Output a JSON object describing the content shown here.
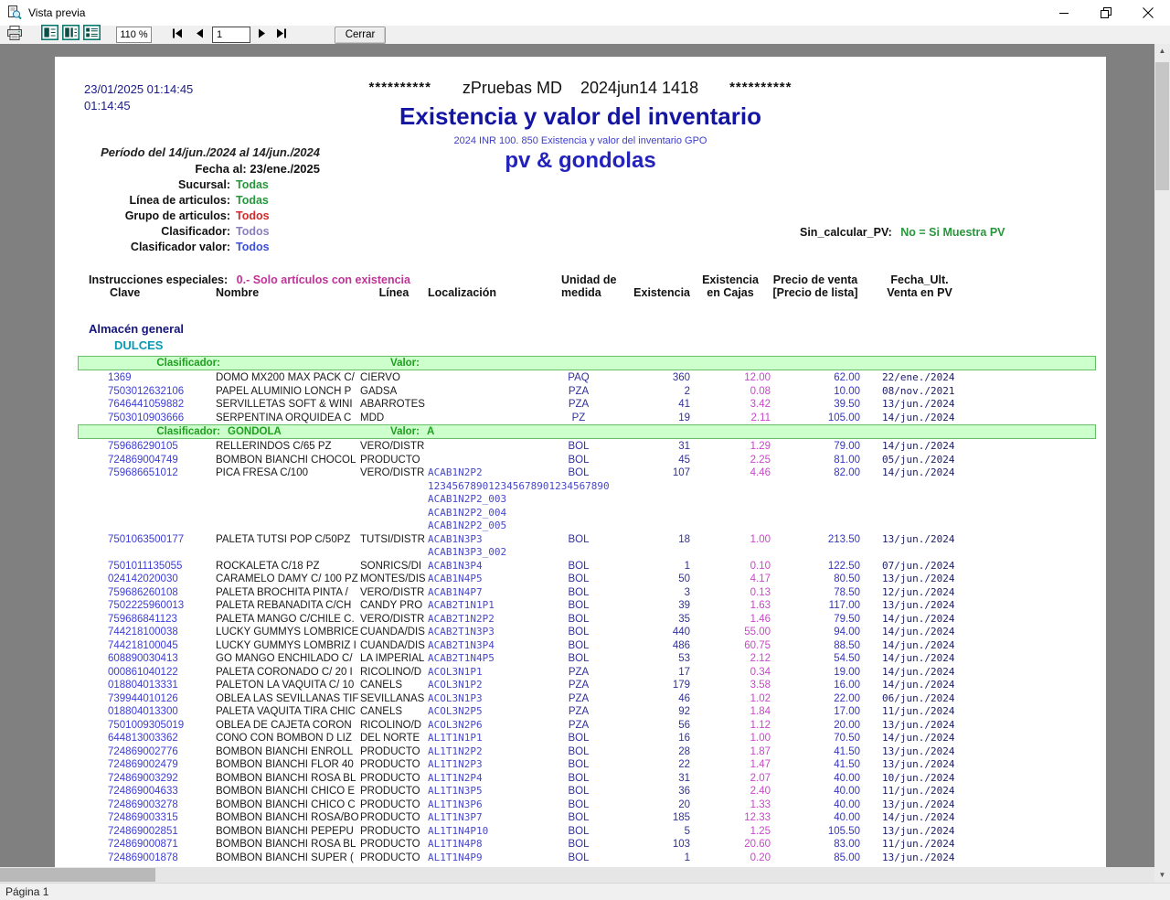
{
  "window": {
    "title": "Vista previa",
    "controls": {
      "minimize": "minimize",
      "restore": "restore",
      "close": "close"
    }
  },
  "toolbar": {
    "zoom_value": "110 %",
    "page_number": "1",
    "close_label": "Cerrar",
    "icons": [
      "printer-icon",
      "single-page-view-icon",
      "page-width-view-icon",
      "multi-page-view-icon",
      "first-page-icon",
      "prev-page-icon",
      "next-page-icon",
      "last-page-icon"
    ]
  },
  "statusbar": {
    "text": "Página 1"
  },
  "colors": {
    "title_navy": "#1515a3",
    "subtitle_blue": "#3c3ccc",
    "pv_blue": "#2323bb",
    "value_green": "#28963c",
    "value_red": "#d42a2a",
    "value_purple": "#8a7ec0",
    "value_blue": "#3a50d8",
    "instructions_magenta": "#c03399",
    "bar_green_bg": "#ccffcc",
    "bar_green_text": "#1fa01f",
    "clave_blue": "#3c3cd8",
    "exist_navy": "#30309c",
    "cajas_magenta": "#cc44cc",
    "precio_blue": "#3434c8",
    "grupo_teal": "#0a9ab4",
    "almacen_navy": "#15157e",
    "workspace_gray": "#808080"
  },
  "report": {
    "printed_datetime": "23/01/2025 01:14:45",
    "printed_time": "01:14:45",
    "stars": "**********",
    "company_line": "zPruebas MD    2024jun14 1418",
    "title": "Existencia y valor del inventario",
    "subtitle": "2024 INR 100. 850 Existencia y valor del inventario GPO",
    "subtitle2": "pv & gondolas",
    "periodo": "Período del 14/jun./2024 al 14/jun./2024",
    "fecha_al": "Fecha al: 23/ene./2025",
    "filters": [
      {
        "label": "Sucursal:",
        "value": "Todas"
      },
      {
        "label": "Línea de articulos:",
        "value": "Todas"
      },
      {
        "label": "Grupo de articulos:",
        "value": "Todos"
      },
      {
        "label": "Clasificador:",
        "value": "Todos"
      },
      {
        "label": "Clasificador valor:",
        "value": "Todos"
      }
    ],
    "sin_calcular_label": "Sin_calcular_PV:",
    "sin_calcular_value": "No = Si Muestra PV",
    "instrucciones_label": "Instrucciones especiales:",
    "instrucciones_value": "0.- Solo artículos con existencia",
    "columns": {
      "clave": "Clave",
      "nombre": "Nombre",
      "linea": "Línea",
      "localizacion": "Localización",
      "um_l1": "Unidad de",
      "um_l2": "medida",
      "existencia": "Existencia",
      "cajas_l1": "Existencia",
      "cajas_l2": "en Cajas",
      "precio_l1": "Precio de venta",
      "precio_l2": "[Precio de lista]",
      "fecha_l1": "Fecha_Ult.",
      "fecha_l2": "Venta en PV"
    },
    "almacen": "Almacén general",
    "grupo": "DULCES",
    "table": {
      "bar_labels": {
        "clasificador": "Clasificador:",
        "valor": "Valor:"
      },
      "sections": [
        {
          "clasificador": "",
          "valor": "",
          "rows": [
            {
              "clave": "1369",
              "nombre": "DOMO MX200 MAX PACK C/",
              "linea": "CIERVO",
              "loc": "",
              "um": "PAQ",
              "exist": "360",
              "cajas": "12.00",
              "precio": "62.00",
              "fecha": "22/ene./2024"
            },
            {
              "clave": "7503012632106",
              "nombre": "PAPEL ALUMINIO LONCH P",
              "linea": "GADSA",
              "loc": "",
              "um": "PZA",
              "exist": "2",
              "cajas": "0.08",
              "precio": "10.00",
              "fecha": "08/nov./2021"
            },
            {
              "clave": "7646441059882",
              "nombre": "SERVILLETAS SOFT & WINI",
              "linea": "ABARROTES",
              "loc": "",
              "um": "PZA",
              "exist": "41",
              "cajas": "3.42",
              "precio": "39.50",
              "fecha": "13/jun./2024"
            },
            {
              "clave": "7503010903666",
              "nombre": "SERPENTINA ORQUIDEA C",
              "linea": "MDD",
              "loc": "",
              "um": "PZ",
              "exist": "19",
              "cajas": "2.11",
              "precio": "105.00",
              "fecha": "14/jun./2024"
            }
          ]
        },
        {
          "clasificador": "GONDOLA",
          "valor": "A",
          "rows": [
            {
              "clave": "759686290105",
              "nombre": "RELLERINDOS C/65 PZ",
              "linea": "VERO/DISTR",
              "loc": "",
              "um": "BOL",
              "exist": "31",
              "cajas": "1.29",
              "precio": "79.00",
              "fecha": "14/jun./2024"
            },
            {
              "clave": "724869004749",
              "nombre": "BOMBON BIANCHI CHOCOL",
              "linea": "PRODUCTO",
              "loc": "",
              "um": "BOL",
              "exist": "45",
              "cajas": "2.25",
              "precio": "81.00",
              "fecha": "05/jun./2024"
            },
            {
              "clave": "759686651012",
              "nombre": "PICA FRESA C/100",
              "linea": "VERO/DISTR",
              "loc": "ACAB1N2P2",
              "loc_extra": [
                "123456789012345678901234567890",
                "ACAB1N2P2_003",
                "ACAB1N2P2_004",
                "ACAB1N2P2_005"
              ],
              "um": "BOL",
              "exist": "107",
              "cajas": "4.46",
              "precio": "82.00",
              "fecha": "14/jun./2024"
            },
            {
              "clave": "7501063500177",
              "nombre": "PALETA TUTSI POP C/50PZ",
              "linea": "TUTSI/DISTR",
              "loc": "ACAB1N3P3",
              "loc_extra": [
                "ACAB1N3P3_002"
              ],
              "um": "BOL",
              "exist": "18",
              "cajas": "1.00",
              "precio": "213.50",
              "fecha": "13/jun./2024"
            },
            {
              "clave": "7501011135055",
              "nombre": "ROCKALETA C/18 PZ",
              "linea": "SONRICS/DI",
              "loc": "ACAB1N3P4",
              "um": "BOL",
              "exist": "1",
              "cajas": "0.10",
              "precio": "122.50",
              "fecha": "07/jun./2024"
            },
            {
              "clave": "024142020030",
              "nombre": "CARAMELO DAMY C/ 100 PZ",
              "linea": "MONTES/DIS",
              "loc": "ACAB1N4P5",
              "um": "BOL",
              "exist": "50",
              "cajas": "4.17",
              "precio": "80.50",
              "fecha": "13/jun./2024"
            },
            {
              "clave": "759686260108",
              "nombre": "PALETA  BROCHITA PINTA /",
              "linea": "VERO/DISTR",
              "loc": "ACAB1N4P7",
              "um": "BOL",
              "exist": "3",
              "cajas": "0.13",
              "precio": "78.50",
              "fecha": "12/jun./2024"
            },
            {
              "clave": "7502225960013",
              "nombre": "PALETA REBANADITA C/CH",
              "linea": "CANDY PRO",
              "loc": "ACAB2T1N1P1",
              "um": "BOL",
              "exist": "39",
              "cajas": "1.63",
              "precio": "117.00",
              "fecha": "13/jun./2024"
            },
            {
              "clave": "759686841123",
              "nombre": "PALETA MANGO C/CHILE C.",
              "linea": "VERO/DISTR",
              "loc": "ACAB2T1N2P2",
              "um": "BOL",
              "exist": "35",
              "cajas": "1.46",
              "precio": "79.50",
              "fecha": "14/jun./2024"
            },
            {
              "clave": "744218100038",
              "nombre": "LUCKY GUMMYS LOMBRICE",
              "linea": "CUANDA/DIS",
              "loc": "ACAB2T1N3P3",
              "um": "BOL",
              "exist": "440",
              "cajas": "55.00",
              "precio": "94.00",
              "fecha": "14/jun./2024"
            },
            {
              "clave": "744218100045",
              "nombre": "LUCKY GUMMYS LOMBRIZ I",
              "linea": "CUANDA/DIS",
              "loc": "ACAB2T1N3P4",
              "um": "BOL",
              "exist": "486",
              "cajas": "60.75",
              "precio": "88.50",
              "fecha": "14/jun./2024"
            },
            {
              "clave": "608890030413",
              "nombre": "GO MANGO ENCHILADO C/",
              "linea": "LA IMPERIAL",
              "loc": "ACAB2T1N4P5",
              "um": "BOL",
              "exist": "53",
              "cajas": "2.12",
              "precio": "54.50",
              "fecha": "14/jun./2024"
            },
            {
              "clave": "000861040122",
              "nombre": "PALETA CORONADO C/ 20 I",
              "linea": "RICOLINO/D",
              "loc": "ACOL3N1P1",
              "um": "PZA",
              "exist": "17",
              "cajas": "0.34",
              "precio": "19.00",
              "fecha": "14/jun./2024"
            },
            {
              "clave": "018804013331",
              "nombre": "PALETON LA VAQUITA C/ 10",
              "linea": "CANELS",
              "loc": "ACOL3N1P2",
              "um": "PZA",
              "exist": "179",
              "cajas": "3.58",
              "precio": "16.00",
              "fecha": "14/jun./2024"
            },
            {
              "clave": "739944010126",
              "nombre": "OBLEA LAS SEVILLANAS TIF",
              "linea": "SEVILLANAS",
              "loc": "ACOL3N1P3",
              "um": "PZA",
              "exist": "46",
              "cajas": "1.02",
              "precio": "22.00",
              "fecha": "06/jun./2024"
            },
            {
              "clave": "018804013300",
              "nombre": "PALETA VAQUITA TIRA CHIC",
              "linea": "CANELS",
              "loc": "ACOL3N2P5",
              "um": "PZA",
              "exist": "92",
              "cajas": "1.84",
              "precio": "17.00",
              "fecha": "11/jun./2024"
            },
            {
              "clave": "7501009305019",
              "nombre": "OBLEA DE CAJETA CORON",
              "linea": "RICOLINO/D",
              "loc": "ACOL3N2P6",
              "um": "PZA",
              "exist": "56",
              "cajas": "1.12",
              "precio": "20.00",
              "fecha": "13/jun./2024"
            },
            {
              "clave": "644813003362",
              "nombre": "CONO CON BOMBON D LIZ",
              "linea": "DEL NORTE",
              "loc": "AL1T1N1P1",
              "um": "BOL",
              "exist": "16",
              "cajas": "1.00",
              "precio": "70.50",
              "fecha": "14/jun./2024"
            },
            {
              "clave": "724869002776",
              "nombre": "BOMBON BIANCHI ENROLL",
              "linea": "PRODUCTO",
              "loc": "AL1T1N2P2",
              "um": "BOL",
              "exist": "28",
              "cajas": "1.87",
              "precio": "41.50",
              "fecha": "13/jun./2024"
            },
            {
              "clave": "724869002479",
              "nombre": "BOMBON BIANCHI FLOR 40",
              "linea": "PRODUCTO",
              "loc": "AL1T1N2P3",
              "um": "BOL",
              "exist": "22",
              "cajas": "1.47",
              "precio": "41.50",
              "fecha": "13/jun./2024"
            },
            {
              "clave": "724869003292",
              "nombre": "BOMBON BIANCHI ROSA BL",
              "linea": "PRODUCTO",
              "loc": "AL1T1N2P4",
              "um": "BOL",
              "exist": "31",
              "cajas": "2.07",
              "precio": "40.00",
              "fecha": "10/jun./2024"
            },
            {
              "clave": "724869004633",
              "nombre": "BOMBON BIANCHI CHICO E",
              "linea": "PRODUCTO",
              "loc": "AL1T1N3P5",
              "um": "BOL",
              "exist": "36",
              "cajas": "2.40",
              "precio": "40.00",
              "fecha": "11/jun./2024"
            },
            {
              "clave": "724869003278",
              "nombre": "BOMBON BIANCHI CHICO C",
              "linea": "PRODUCTO",
              "loc": "AL1T1N3P6",
              "um": "BOL",
              "exist": "20",
              "cajas": "1.33",
              "precio": "40.00",
              "fecha": "13/jun./2024"
            },
            {
              "clave": "724869003315",
              "nombre": "BOMBON BIANCHI ROSA/BO",
              "linea": "PRODUCTO",
              "loc": "AL1T1N3P7",
              "um": "BOL",
              "exist": "185",
              "cajas": "12.33",
              "precio": "40.00",
              "fecha": "14/jun./2024"
            },
            {
              "clave": "724869002851",
              "nombre": "BOMBON BIANCHI PEPEPU",
              "linea": "PRODUCTO",
              "loc": "AL1T1N4P10",
              "um": "BOL",
              "exist": "5",
              "cajas": "1.25",
              "precio": "105.50",
              "fecha": "13/jun./2024"
            },
            {
              "clave": "724869000871",
              "nombre": "BOMBON BIANCHI ROSA BL",
              "linea": "PRODUCTO",
              "loc": "AL1T1N4P8",
              "um": "BOL",
              "exist": "103",
              "cajas": "20.60",
              "precio": "83.00",
              "fecha": "11/jun./2024"
            },
            {
              "clave": "724869001878",
              "nombre": "BOMBON BIANCHI SUPER (",
              "linea": "PRODUCTO",
              "loc": "AL1T1N4P9",
              "um": "BOL",
              "exist": "1",
              "cajas": "0.20",
              "precio": "85.00",
              "fecha": "13/jun./2024"
            }
          ]
        }
      ]
    }
  }
}
